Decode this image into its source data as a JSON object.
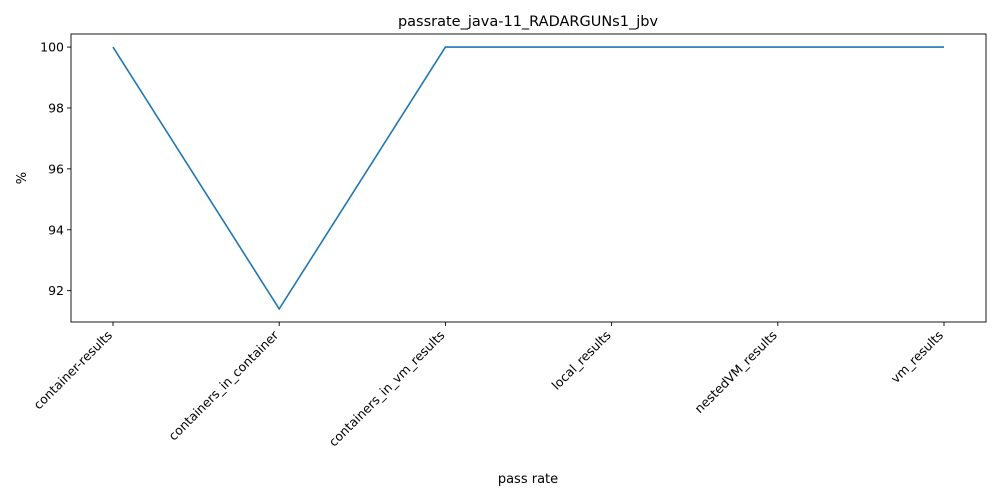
{
  "chart_data": {
    "type": "line",
    "title": "passrate_java-11_RADARGUNs1_jbv",
    "xlabel": "pass rate",
    "ylabel": "%",
    "categories": [
      "container-results",
      "containers_in_container",
      "containers_in_vm_results",
      "local_results",
      "nestedVM_results",
      "vm_results"
    ],
    "series": [
      {
        "values": [
          100,
          91.4,
          100,
          100,
          100,
          100
        ],
        "color": "#1f77b4"
      }
    ],
    "ylim": [
      90.97,
      100.43
    ],
    "yticks": [
      92,
      94,
      96,
      98,
      100
    ],
    "grid": false,
    "legend": "none"
  }
}
